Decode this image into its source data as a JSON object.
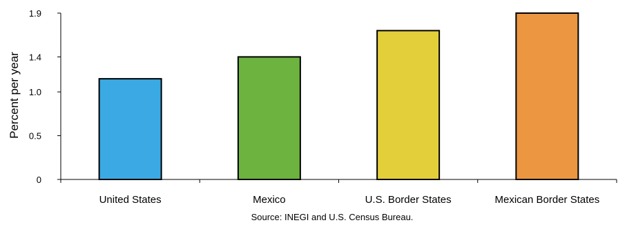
{
  "chart_data": {
    "type": "bar",
    "categories": [
      "United States",
      "Mexico",
      "U.S. Border States",
      "Mexican Border States"
    ],
    "values": [
      1.15,
      1.4,
      1.7,
      1.9
    ],
    "colors": [
      "#3aa9e4",
      "#6cb33f",
      "#e3cf3a",
      "#ec9642"
    ],
    "bar_outline_color": "#000000",
    "ylabel": "Percent per year",
    "xlabel": "",
    "ylim": [
      0,
      1.9
    ],
    "yticks": [
      {
        "value": 0,
        "label": "0"
      },
      {
        "value": 0.5,
        "label": "0.5"
      },
      {
        "value": 1.0,
        "label": "1.0"
      },
      {
        "value": 1.4,
        "label": "1.4"
      },
      {
        "value": 1.9,
        "label": "1.9"
      }
    ],
    "grid": false,
    "legend": "none",
    "source": "Source: INEGI and U.S. Census Bureau."
  }
}
